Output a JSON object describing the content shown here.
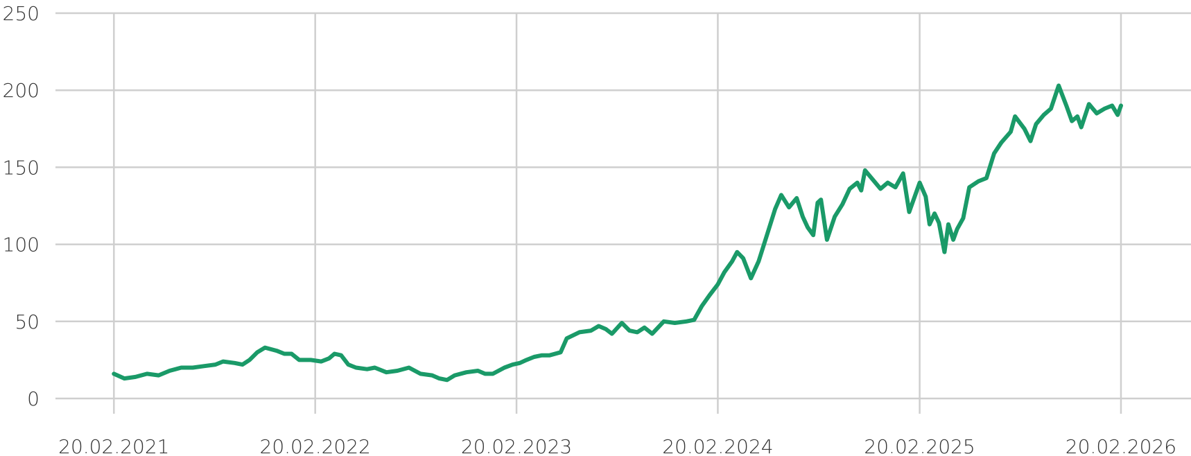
{
  "chart_data": {
    "type": "line",
    "x": [
      "20.02.2021",
      "11.03.2021",
      "31.03.2021",
      "21.04.2021",
      "12.05.2021",
      "01.06.2021",
      "22.06.2021",
      "13.07.2021",
      "02.08.2021",
      "23.08.2021",
      "06.09.2021",
      "27.09.2021",
      "11.10.2021",
      "24.10.2021",
      "07.11.2021",
      "21.11.2021",
      "12.12.2021",
      "26.12.2021",
      "08.01.2022",
      "22.01.2022",
      "12.02.2022",
      "03.03.2022",
      "17.03.2022",
      "27.03.2022",
      "08.04.2022",
      "21.04.2022",
      "05.05.2022",
      "25.05.2022",
      "08.06.2022",
      "29.06.2022",
      "19.07.2022",
      "09.08.2022",
      "30.08.2022",
      "20.09.2022",
      "03.10.2022",
      "17.10.2022",
      "31.10.2022",
      "21.11.2022",
      "12.12.2022",
      "25.12.2022",
      "08.01.2023",
      "29.01.2023",
      "13.02.2023",
      "26.02.2023",
      "10.03.2023",
      "24.03.2023",
      "07.04.2023",
      "21.04.2023",
      "11.05.2023",
      "22.05.2023",
      "14.06.2023",
      "05.07.2023",
      "19.07.2023",
      "01.08.2023",
      "12.08.2023",
      "30.08.2023",
      "13.09.2023",
      "27.09.2023",
      "10.10.2023",
      "24.10.2023",
      "14.11.2023",
      "04.12.2023",
      "25.12.2023",
      "08.01.2024",
      "22.01.2024",
      "05.02.2024",
      "20.02.2024",
      "03.03.2024",
      "17.03.2024",
      "26.03.2024",
      "06.04.2024",
      "20.04.2024",
      "04.05.2024",
      "20.05.2024",
      "03.06.2024",
      "14.06.2024",
      "28.06.2024",
      "12.07.2024",
      "23.07.2024",
      "01.08.2024",
      "11.08.2024",
      "19.08.2024",
      "25.08.2024",
      "05.09.2024",
      "19.09.2024",
      "03.10.2024",
      "16.10.2024",
      "30.10.2024",
      "06.11.2024",
      "13.11.2024",
      "27.11.2024",
      "11.12.2024",
      "24.12.2024",
      "07.01.2025",
      "21.01.2025",
      "01.02.2025",
      "20.02.2025",
      "03.03.2025",
      "10.03.2025",
      "19.03.2025",
      "27.03.2025",
      "06.04.2025",
      "13.04.2025",
      "22.04.2025",
      "29.04.2025",
      "10.05.2025",
      "21.05.2025",
      "07.06.2025",
      "21.06.2025",
      "05.07.2025",
      "18.07.2025",
      "04.08.2025",
      "12.08.2025",
      "29.08.2025",
      "09.09.2025",
      "19.09.2025",
      "03.10.2025",
      "16.10.2025",
      "30.10.2025",
      "13.11.2025",
      "23.11.2025",
      "03.12.2025",
      "10.12.2025",
      "24.12.2025",
      "07.01.2026",
      "21.01.2026",
      "04.02.2026",
      "14.02.2026",
      "20.02.2026"
    ],
    "series": [
      {
        "color": "#1a9a68",
        "values": [
          16,
          13,
          14,
          16,
          15,
          18,
          20,
          20,
          21,
          22,
          24,
          23,
          22,
          25,
          30,
          33,
          31,
          29,
          29,
          25,
          25,
          24,
          26,
          29,
          28,
          22,
          20,
          19,
          20,
          17,
          18,
          20,
          16,
          15,
          13,
          12,
          15,
          17,
          18,
          16,
          16,
          20,
          22,
          23,
          25,
          27,
          28,
          28,
          30,
          39,
          43,
          44,
          47,
          45,
          42,
          49,
          44,
          43,
          46,
          42,
          50,
          49,
          50,
          51,
          60,
          67,
          74,
          82,
          89,
          95,
          91,
          78,
          89,
          107,
          123,
          132,
          124,
          130,
          118,
          111,
          106,
          127,
          129,
          103,
          118,
          126,
          136,
          140,
          135,
          148,
          142,
          136,
          140,
          137,
          146,
          121,
          140,
          131,
          113,
          120,
          114,
          95,
          113,
          103,
          110,
          117,
          137,
          141,
          143,
          159,
          166,
          173,
          183,
          175,
          167,
          178,
          184,
          188,
          203,
          190,
          180,
          183,
          176,
          191,
          185,
          188,
          190,
          184,
          190
        ]
      }
    ],
    "xlim": [
      "06.11.2020",
      "27.06.2026"
    ],
    "xticks": [
      "20.02.2021",
      "20.02.2022",
      "20.02.2023",
      "20.02.2024",
      "20.02.2025",
      "20.02.2026"
    ],
    "ylim": [
      0,
      250
    ],
    "yticks": [
      0,
      50,
      100,
      150,
      200,
      250
    ],
    "grid": true
  }
}
